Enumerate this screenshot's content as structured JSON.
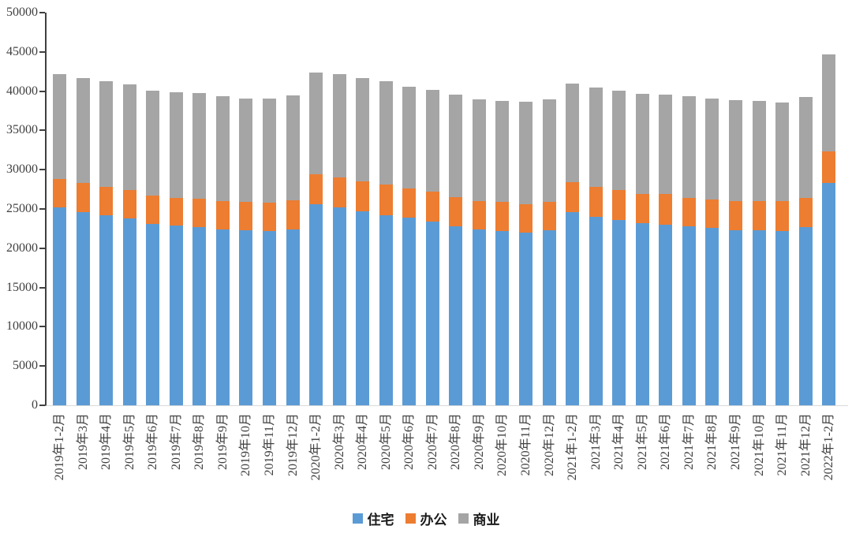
{
  "chart_data": {
    "type": "bar",
    "stacked": true,
    "title": "",
    "categories": [
      "2019年1-2月",
      "2019年3月",
      "2019年4月",
      "2019年5月",
      "2019年6月",
      "2019年7月",
      "2019年8月",
      "2019年9月",
      "2019年10月",
      "2019年11月",
      "2019年12月",
      "2020年1-2月",
      "2020年3月",
      "2020年4月",
      "2020年5月",
      "2020年6月",
      "2020年7月",
      "2020年8月",
      "2020年9月",
      "2020年10月",
      "2020年11月",
      "2020年12月",
      "2021年1-2月",
      "2021年3月",
      "2021年4月",
      "2021年5月",
      "2021年6月",
      "2021年7月",
      "2021年8月",
      "2021年9月",
      "2021年10月",
      "2021年11月",
      "2021年12月",
      "2022年1-2月"
    ],
    "series": [
      {
        "name": "住宅",
        "key": "residential",
        "color": "#5B9BD5",
        "values": [
          25200,
          24600,
          24200,
          23800,
          23100,
          22900,
          22700,
          22400,
          22300,
          22200,
          22400,
          25600,
          25200,
          24700,
          24200,
          23900,
          23400,
          22800,
          22400,
          22200,
          22000,
          22300,
          24600,
          24000,
          23600,
          23200,
          23000,
          22800,
          22600,
          22300,
          22300,
          22200,
          22700,
          28300
        ]
      },
      {
        "name": "办公",
        "key": "office",
        "color": "#ED7D31",
        "values": [
          3600,
          3700,
          3600,
          3600,
          3600,
          3500,
          3600,
          3600,
          3600,
          3600,
          3700,
          3800,
          3800,
          3800,
          3900,
          3700,
          3800,
          3700,
          3600,
          3700,
          3600,
          3600,
          3800,
          3800,
          3800,
          3700,
          3900,
          3600,
          3600,
          3700,
          3700,
          3800,
          3700,
          4000
        ]
      },
      {
        "name": "商业",
        "key": "commercial",
        "color": "#A5A5A5",
        "values": [
          13400,
          13400,
          13500,
          13500,
          13400,
          13500,
          13500,
          13400,
          13200,
          13300,
          13400,
          13000,
          13200,
          13200,
          13200,
          13000,
          13000,
          13100,
          13000,
          12900,
          13100,
          13100,
          12600,
          12700,
          12700,
          12800,
          12700,
          13000,
          12900,
          12900,
          12800,
          12600,
          12900,
          12400
        ]
      }
    ],
    "y_axis": {
      "min": 0,
      "max": 50000,
      "tick_step": 5000,
      "tick_labels": [
        "0",
        "5000",
        "10000",
        "15000",
        "20000",
        "25000",
        "30000",
        "35000",
        "40000",
        "45000",
        "50000"
      ]
    },
    "legend": {
      "position": "bottom",
      "items": [
        "住宅",
        "办公",
        "商业"
      ]
    },
    "grid": false,
    "colors": {
      "y_axis_line": "#404040",
      "x_axis_line": "#D9D9D9",
      "tick_text": "#404040",
      "background": "#FFFFFF"
    }
  }
}
